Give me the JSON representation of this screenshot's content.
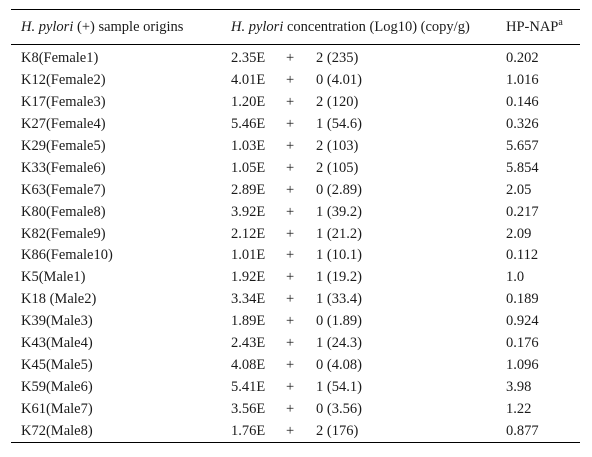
{
  "header": {
    "col1_italic": "H. pylori",
    "col1_rest": " (+) sample origins",
    "col2_italic": "H. pylori",
    "col2_rest": " concentration (Log10) (copy/g)",
    "col3_main": "HP-NAP",
    "col3_sup": "a"
  },
  "rows": [
    {
      "origin": "K8(Female1)",
      "mant": "2.35E",
      "sign": "+",
      "exp": "2 (235)",
      "nap": "0.202"
    },
    {
      "origin": "K12(Female2)",
      "mant": "4.01E",
      "sign": "+",
      "exp": "0 (4.01)",
      "nap": "1.016"
    },
    {
      "origin": "K17(Female3)",
      "mant": "1.20E",
      "sign": "+",
      "exp": "2 (120)",
      "nap": "0.146"
    },
    {
      "origin": "K27(Female4)",
      "mant": "5.46E",
      "sign": "+",
      "exp": "1 (54.6)",
      "nap": "0.326"
    },
    {
      "origin": "K29(Female5)",
      "mant": "1.03E",
      "sign": "+",
      "exp": "2 (103)",
      "nap": "5.657"
    },
    {
      "origin": "K33(Female6)",
      "mant": "1.05E",
      "sign": "+",
      "exp": "2 (105)",
      "nap": "5.854"
    },
    {
      "origin": "K63(Female7)",
      "mant": "2.89E",
      "sign": "+",
      "exp": "0 (2.89)",
      "nap": "2.05"
    },
    {
      "origin": "K80(Female8)",
      "mant": "3.92E",
      "sign": "+",
      "exp": "1 (39.2)",
      "nap": "0.217"
    },
    {
      "origin": "K82(Female9)",
      "mant": "2.12E",
      "sign": "+",
      "exp": "1 (21.2)",
      "nap": "2.09"
    },
    {
      "origin": "K86(Female10)",
      "mant": "1.01E",
      "sign": "+",
      "exp": "1 (10.1)",
      "nap": "0.112"
    },
    {
      "origin": "K5(Male1)",
      "mant": "1.92E",
      "sign": "+",
      "exp": "1 (19.2)",
      "nap": "1.0"
    },
    {
      "origin": "K18 (Male2)",
      "mant": "3.34E",
      "sign": "+",
      "exp": "1 (33.4)",
      "nap": "0.189"
    },
    {
      "origin": "K39(Male3)",
      "mant": "1.89E",
      "sign": "+",
      "exp": "0 (1.89)",
      "nap": "0.924"
    },
    {
      "origin": "K43(Male4)",
      "mant": "2.43E",
      "sign": "+",
      "exp": "1 (24.3)",
      "nap": "0.176"
    },
    {
      "origin": "K45(Male5)",
      "mant": "4.08E",
      "sign": "+",
      "exp": "0 (4.08)",
      "nap": "1.096"
    },
    {
      "origin": "K59(Male6)",
      "mant": "5.41E",
      "sign": "+",
      "exp": "1 (54.1)",
      "nap": "3.98"
    },
    {
      "origin": "K61(Male7)",
      "mant": "3.56E",
      "sign": "+",
      "exp": "0 (3.56)",
      "nap": "1.22"
    },
    {
      "origin": "K72(Male8)",
      "mant": "1.76E",
      "sign": "+",
      "exp": "2 (176)",
      "nap": "0.877"
    }
  ]
}
